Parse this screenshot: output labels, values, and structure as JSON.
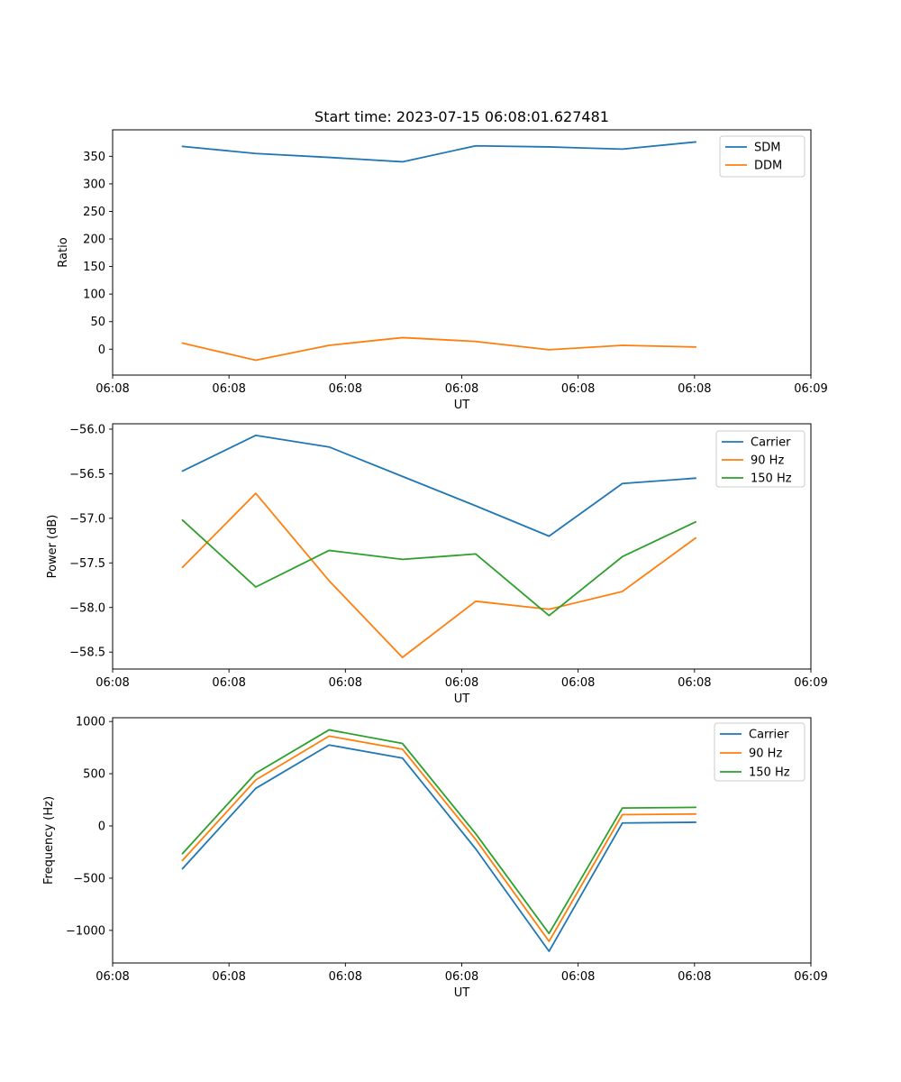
{
  "figure": {
    "title": "Start time: 2023-07-15 06:08:01.627481",
    "background": "#ffffff",
    "text_color": "#000000",
    "spine_color": "#000000"
  },
  "chart_data": [
    {
      "id": "ratio",
      "type": "line",
      "title": "Start time: 2023-07-15 06:08:01.627481",
      "xlabel": "UT",
      "ylabel": "Ratio",
      "x_unit": "seconds after 06:08:00 UT",
      "x": [
        6.0,
        12.3,
        18.6,
        24.9,
        31.2,
        37.5,
        43.8,
        50.1
      ],
      "xlim": [
        0,
        60
      ],
      "ylim": [
        -47,
        398
      ],
      "xtick_values": [
        0,
        10,
        20,
        30,
        40,
        50,
        60
      ],
      "xtick_labels": [
        "06:08",
        "06:08",
        "06:08",
        "06:08",
        "06:08",
        "06:08",
        "06:09"
      ],
      "ytick_values": [
        0,
        50,
        100,
        150,
        200,
        250,
        300,
        350
      ],
      "ytick_labels": [
        "0",
        "50",
        "100",
        "150",
        "200",
        "250",
        "300",
        "350"
      ],
      "grid": false,
      "legend_position": "upper right",
      "legend_labels": [
        "SDM",
        "DDM"
      ],
      "series": [
        {
          "name": "SDM",
          "color": "#1f77b4",
          "values": [
            368,
            355,
            348,
            340,
            369,
            367,
            363,
            376
          ]
        },
        {
          "name": "DDM",
          "color": "#ff7f0e",
          "values": [
            11,
            -20,
            7,
            21,
            14,
            -1,
            7,
            4
          ]
        }
      ]
    },
    {
      "id": "power",
      "type": "line",
      "title": "",
      "xlabel": "UT",
      "ylabel": "Power (dB)",
      "x_unit": "seconds after 06:08:00 UT",
      "x": [
        6.0,
        12.3,
        18.6,
        24.9,
        31.2,
        37.5,
        43.8,
        50.1
      ],
      "xlim": [
        0,
        60
      ],
      "ylim": [
        -58.69,
        -55.94
      ],
      "xtick_values": [
        0,
        10,
        20,
        30,
        40,
        50,
        60
      ],
      "xtick_labels": [
        "06:08",
        "06:08",
        "06:08",
        "06:08",
        "06:08",
        "06:08",
        "06:09"
      ],
      "ytick_values": [
        -56.0,
        -56.5,
        -57.0,
        -57.5,
        -58.0,
        -58.5
      ],
      "ytick_labels": [
        "−56.0",
        "−56.5",
        "−57.0",
        "−57.5",
        "−58.0",
        "−58.5"
      ],
      "grid": false,
      "legend_position": "upper right",
      "legend_labels": [
        "Carrier",
        "90 Hz",
        "150 Hz"
      ],
      "series": [
        {
          "name": "Carrier",
          "color": "#1f77b4",
          "values": [
            -56.47,
            -56.07,
            -56.2,
            -56.53,
            -56.86,
            -57.2,
            -56.61,
            -56.55
          ]
        },
        {
          "name": "90 Hz",
          "color": "#ff7f0e",
          "values": [
            -57.55,
            -56.72,
            -57.7,
            -58.56,
            -57.93,
            -58.02,
            -57.82,
            -57.22
          ]
        },
        {
          "name": "150 Hz",
          "color": "#2ca02c",
          "values": [
            -57.02,
            -57.77,
            -57.36,
            -57.46,
            -57.4,
            -58.09,
            -57.43,
            -57.04
          ]
        }
      ]
    },
    {
      "id": "frequency",
      "type": "line",
      "title": "",
      "xlabel": "UT",
      "ylabel": "Frequency (Hz)",
      "x_unit": "seconds after 06:08:00 UT",
      "x": [
        6.0,
        12.3,
        18.6,
        24.9,
        31.2,
        37.5,
        43.8,
        50.1
      ],
      "xlim": [
        0,
        60
      ],
      "ylim": [
        -1312,
        1036
      ],
      "xtick_values": [
        0,
        10,
        20,
        30,
        40,
        50,
        60
      ],
      "xtick_labels": [
        "06:08",
        "06:08",
        "06:08",
        "06:08",
        "06:08",
        "06:08",
        "06:09"
      ],
      "ytick_values": [
        1000,
        500,
        0,
        -500,
        -1000
      ],
      "ytick_labels": [
        "1000",
        "500",
        "0",
        "−500",
        "−1000"
      ],
      "grid": false,
      "legend_position": "upper right",
      "legend_labels": [
        "Carrier",
        "90 Hz",
        "150 Hz"
      ],
      "series": [
        {
          "name": "Carrier",
          "color": "#1f77b4",
          "values": [
            -410,
            360,
            775,
            650,
            -220,
            -1200,
            28,
            35
          ]
        },
        {
          "name": "90 Hz",
          "color": "#ff7f0e",
          "values": [
            -330,
            440,
            860,
            735,
            -130,
            -1105,
            108,
            114
          ]
        },
        {
          "name": "150 Hz",
          "color": "#2ca02c",
          "values": [
            -265,
            505,
            920,
            790,
            -75,
            -1030,
            172,
            178
          ]
        }
      ]
    }
  ]
}
